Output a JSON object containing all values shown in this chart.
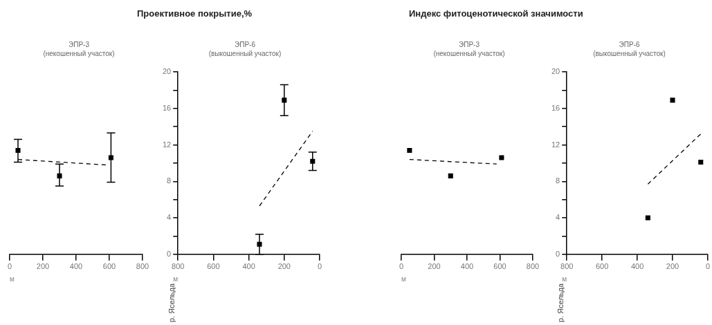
{
  "chart_data": [
    {
      "type": "scatter",
      "subtitle": "ЭПР-3\n(некошенный участок)",
      "xlabel": "м",
      "xlim": [
        0,
        800
      ],
      "xticks": [
        0,
        200,
        400,
        600,
        800
      ],
      "ylim": [
        0,
        20
      ],
      "tick_labels": "x",
      "grid": false,
      "marker": "square",
      "series": [
        {
          "color": "#000000",
          "x": [
            50,
            300,
            610
          ],
          "values": [
            11.4,
            8.6,
            10.6
          ],
          "errors": [
            [
              10.1,
              12.6
            ],
            [
              7.5,
              9.9
            ],
            [
              7.9,
              13.3
            ]
          ]
        },
        {
          "type": "line",
          "color": "#000000",
          "marker": "none",
          "line_style": "dashed",
          "x": [
            50,
            580
          ],
          "values": [
            10.4,
            9.8
          ]
        }
      ]
    },
    {
      "type": "scatter",
      "title": "Проективное покрытие,%",
      "subtitle": "ЭПР-6\n(выкошенный участок)",
      "xlabel": "м",
      "xlim": [
        800,
        0
      ],
      "xticks": [
        800,
        600,
        400,
        200,
        0
      ],
      "ylim": [
        0,
        20
      ],
      "yticks": [
        0,
        {
          "value": 2,
          "label": null
        },
        4,
        {
          "value": 6,
          "label": null
        },
        8,
        {
          "value": 10,
          "label": null
        },
        12,
        {
          "value": 14,
          "label": null
        },
        16,
        {
          "value": 18,
          "label": null
        },
        20
      ],
      "grid": false,
      "marker": "square",
      "annotations": [
        "р. Ясельда"
      ],
      "series": [
        {
          "color": "#000000",
          "x": [
            340,
            200,
            40
          ],
          "values": [
            1.1,
            16.9,
            10.2
          ],
          "errors": [
            [
              0,
              2.2
            ],
            [
              15.2,
              18.6
            ],
            [
              9.2,
              11.2
            ]
          ]
        },
        {
          "type": "line",
          "color": "#000000",
          "marker": "none",
          "line_style": "dashed",
          "x": [
            340,
            40
          ],
          "values": [
            5.3,
            13.5
          ]
        }
      ]
    },
    {
      "type": "scatter",
      "title": "Индекс фитоценотической значимости",
      "subtitle": "ЭПР-3\n(некошенный участок)",
      "xlabel": "м",
      "xlim": [
        0,
        800
      ],
      "xticks": [
        0,
        200,
        400,
        600,
        800
      ],
      "ylim": [
        0,
        20
      ],
      "tick_labels": "x",
      "grid": false,
      "marker": "square",
      "series": [
        {
          "color": "#000000",
          "x": [
            50,
            300,
            610
          ],
          "values": [
            11.4,
            8.6,
            10.6
          ]
        },
        {
          "type": "line",
          "color": "#000000",
          "marker": "none",
          "line_style": "dashed",
          "x": [
            50,
            580
          ],
          "values": [
            10.4,
            9.9
          ]
        }
      ]
    },
    {
      "type": "scatter",
      "subtitle": "ЭПР-6\n(выкошенный участок)",
      "xlabel": "м",
      "xlim": [
        800,
        0
      ],
      "xticks": [
        800,
        600,
        400,
        200,
        0
      ],
      "ylim": [
        0,
        20
      ],
      "yticks": [
        0,
        {
          "value": 2,
          "label": null
        },
        4,
        {
          "value": 6,
          "label": null
        },
        8,
        {
          "value": 10,
          "label": null
        },
        12,
        {
          "value": 14,
          "label": null
        },
        16,
        {
          "value": 18,
          "label": null
        },
        20
      ],
      "grid": false,
      "marker": "square",
      "annotations": [
        "р. Ясельда"
      ],
      "series": [
        {
          "color": "#000000",
          "x": [
            340,
            200,
            40
          ],
          "values": [
            4.0,
            16.9,
            10.1
          ]
        },
        {
          "type": "line",
          "color": "#000000",
          "marker": "none",
          "line_style": "dashed",
          "x": [
            340,
            40
          ],
          "values": [
            7.7,
            13.2
          ]
        }
      ]
    }
  ]
}
